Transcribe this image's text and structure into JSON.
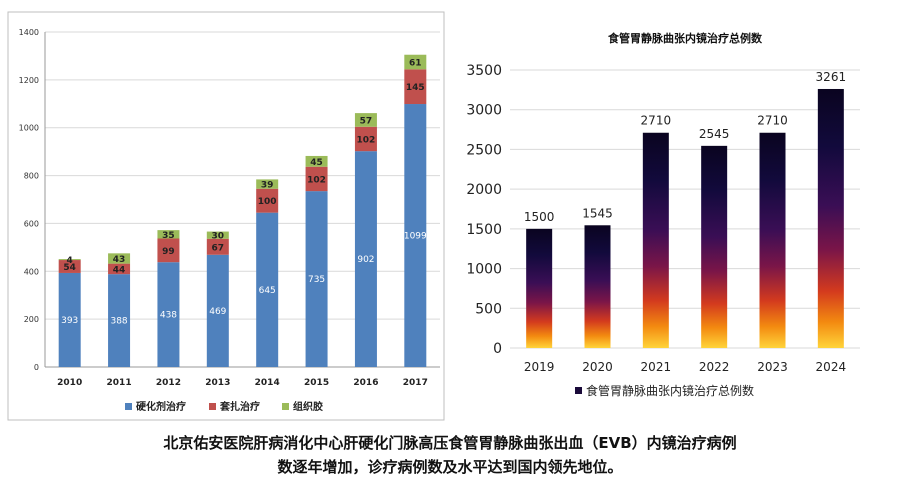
{
  "chart_data": [
    {
      "type": "bar",
      "stacked": true,
      "title": "",
      "categories": [
        "2010",
        "2011",
        "2012",
        "2013",
        "2014",
        "2015",
        "2016",
        "2017"
      ],
      "series": [
        {
          "name": "硬化剂治疗",
          "color": "#4f81bd",
          "values": [
            393,
            388,
            438,
            469,
            645,
            735,
            902,
            1099
          ]
        },
        {
          "name": "套扎治疗",
          "color": "#c0504d",
          "values": [
            54,
            44,
            99,
            67,
            100,
            102,
            102,
            145
          ]
        },
        {
          "name": "组织胶",
          "color": "#9bbb59",
          "values": [
            4,
            43,
            35,
            30,
            39,
            45,
            57,
            61
          ]
        }
      ],
      "ylim": [
        0,
        1400
      ],
      "yticks": [
        0,
        200,
        400,
        600,
        800,
        1000,
        1200,
        1400
      ],
      "grid": true,
      "legend": "bottom"
    },
    {
      "type": "bar",
      "title": "食管胃静脉曲张内镜治疗总例数",
      "categories": [
        "2019",
        "2020",
        "2021",
        "2022",
        "2023",
        "2024"
      ],
      "series": [
        {
          "name": "食管胃静脉曲张内镜治疗总例数",
          "values": [
            1500,
            1545,
            2710,
            2545,
            2710,
            3261
          ]
        }
      ],
      "ylim": [
        0,
        3500
      ],
      "yticks": [
        0,
        500,
        1000,
        1500,
        2000,
        2500,
        3000,
        3500
      ],
      "grid": true,
      "legend": "bottom"
    }
  ],
  "caption": {
    "line1": "北京佑安医院肝病消化中心肝硬化门脉高压食管胃静脉曲张出血（EVB）内镜治疗病例",
    "line2": "数逐年增加，诊疗病例数及水平达到国内领先地位。"
  }
}
